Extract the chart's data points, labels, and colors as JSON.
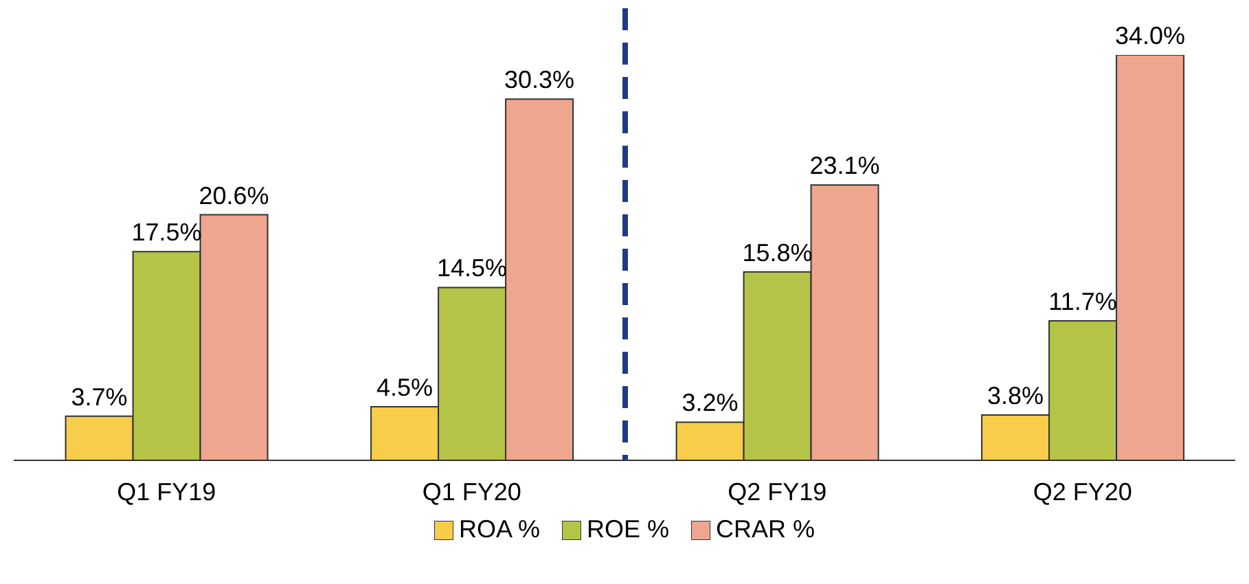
{
  "chart_data": {
    "type": "bar",
    "categories": [
      "Q1 FY19",
      "Q1 FY20",
      "Q2 FY19",
      "Q2 FY20"
    ],
    "series": [
      {
        "name": "ROA %",
        "color": "#f7cd4a",
        "values": [
          3.7,
          4.5,
          3.2,
          3.8
        ],
        "value_labels": [
          "3.7%",
          "4.5%",
          "3.2%",
          "3.8%"
        ]
      },
      {
        "name": "ROE %",
        "color": "#b5c446",
        "values": [
          17.5,
          14.5,
          15.8,
          11.7
        ],
        "value_labels": [
          "17.5%",
          "14.5%",
          "15.8%",
          "11.7%"
        ]
      },
      {
        "name": "CRAR %",
        "color": "#eea68f",
        "values": [
          20.6,
          30.3,
          23.1,
          34.0
        ],
        "value_labels": [
          "20.6%",
          "30.3%",
          "23.1%",
          "34.0%"
        ]
      }
    ],
    "legend": "bottom"
  }
}
